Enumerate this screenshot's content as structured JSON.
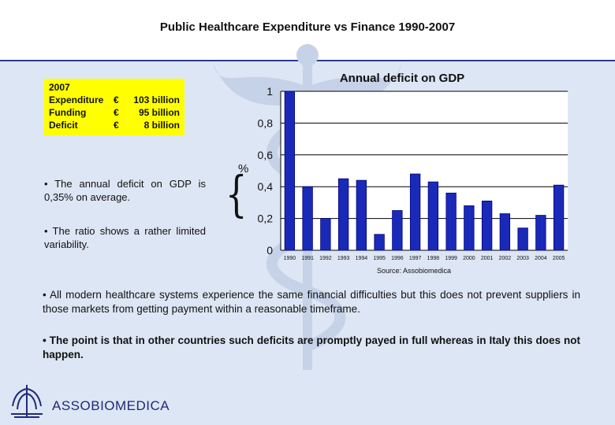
{
  "slide": {
    "title": "Public Healthcare Expenditure vs Finance 1990-2007"
  },
  "summary_box": {
    "year": "2007",
    "rows": [
      {
        "label": "Expenditure",
        "currency": "€",
        "amount": "103 billion"
      },
      {
        "label": "Funding",
        "currency": "€",
        "amount": "95 billion"
      },
      {
        "label": "Deficit",
        "currency": "€",
        "amount": "8 billion"
      }
    ]
  },
  "bullets": [
    "• The annual deficit on GDP is 0,35% on average.",
    "• The ratio shows a rather limited variability."
  ],
  "unit_label": "%",
  "brace_glyph": "{",
  "source": "Source: Assobiomedica",
  "paragraphs": [
    "• All modern healthcare systems experience the same financial difficulties but this does not prevent suppliers in those markets from getting payment within a reasonable timeframe.",
    "• The point is that in other countries such deficits are promptly payed in full whereas in Italy this does not happen."
  ],
  "logo": {
    "text": "ASSOBIOMEDICA"
  },
  "colors": {
    "bar": "#1a2ab8",
    "bar_edge": "#000080",
    "accent": "#2b3c8c",
    "highlight": "#ffff00"
  },
  "chart_data": {
    "type": "bar",
    "title": "Annual deficit on GDP",
    "xlabel": "",
    "ylabel": "%",
    "ylim": [
      0,
      1
    ],
    "yticks": [
      0,
      0.2,
      0.4,
      0.6,
      0.8,
      1
    ],
    "ytick_labels": [
      "0",
      "0,2",
      "0,4",
      "0,6",
      "0,8",
      "1"
    ],
    "grid": "horizontal",
    "categories": [
      "1990",
      "1991",
      "1992",
      "1993",
      "1994",
      "1995",
      "1996",
      "1997",
      "1998",
      "1999",
      "2000",
      "2001",
      "2002",
      "2003",
      "2004",
      "2005"
    ],
    "values": [
      1.0,
      0.4,
      0.2,
      0.45,
      0.44,
      0.1,
      0.25,
      0.48,
      0.43,
      0.36,
      0.28,
      0.31,
      0.23,
      0.14,
      0.22,
      0.41
    ]
  }
}
